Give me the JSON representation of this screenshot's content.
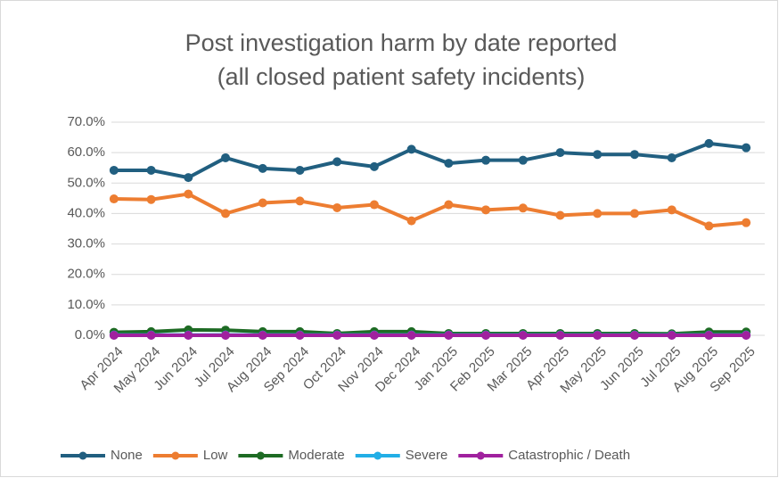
{
  "chart_data": {
    "type": "line",
    "title": "Post investigation harm by date reported",
    "subtitle": "(all closed patient safety incidents)",
    "categories": [
      "Apr 2024",
      "May 2024",
      "Jun 2024",
      "Jul 2024",
      "Aug 2024",
      "Sep 2024",
      "Oct 2024",
      "Nov 2024",
      "Dec 2024",
      "Jan 2025",
      "Feb 2025",
      "Mar 2025",
      "Apr 2025",
      "May 2025",
      "Jun 2025",
      "Jul 2025",
      "Aug 2025",
      "Sep 2025"
    ],
    "series": [
      {
        "name": "None",
        "color": "#215f80",
        "values": [
          54.2,
          54.2,
          51.8,
          58.3,
          54.8,
          54.2,
          57.0,
          55.4,
          61.1,
          56.5,
          57.5,
          57.5,
          60.0,
          59.4,
          59.4,
          58.3,
          63.0,
          61.6
        ]
      },
      {
        "name": "Low",
        "color": "#ed7d31",
        "values": [
          44.8,
          44.6,
          46.4,
          40.0,
          43.5,
          44.1,
          41.9,
          42.9,
          37.6,
          42.9,
          41.2,
          41.8,
          39.4,
          40.0,
          40.0,
          41.2,
          35.9,
          37.0
        ]
      },
      {
        "name": "Moderate",
        "color": "#1e6b24",
        "values": [
          1.0,
          1.2,
          1.8,
          1.7,
          1.2,
          1.2,
          0.6,
          1.2,
          1.2,
          0.6,
          0.6,
          0.6,
          0.6,
          0.6,
          0.6,
          0.5,
          1.1,
          1.1
        ]
      },
      {
        "name": "Severe",
        "color": "#22aee6",
        "values": [
          0.1,
          0.1,
          0.1,
          0.1,
          0.1,
          0.1,
          0.1,
          0.1,
          0.1,
          0.1,
          0.1,
          0.1,
          0.1,
          0.1,
          0.1,
          0.1,
          0.1,
          0.1
        ]
      },
      {
        "name": "Catastrophic / Death",
        "color": "#a0219e",
        "values": [
          0,
          0,
          0,
          0,
          0,
          0,
          0,
          0,
          0,
          0,
          0,
          0,
          0,
          0,
          0,
          0,
          0,
          0
        ]
      }
    ],
    "ylim": [
      0,
      70
    ],
    "yticks": [
      {
        "value": 0,
        "label": "0.0%"
      },
      {
        "value": 10,
        "label": "10.0%"
      },
      {
        "value": 20,
        "label": "20.0%"
      },
      {
        "value": 30,
        "label": "30.0%"
      },
      {
        "value": 40,
        "label": "40.0%"
      },
      {
        "value": 50,
        "label": "50.0%"
      },
      {
        "value": 60,
        "label": "60.0%"
      },
      {
        "value": 70,
        "label": "70.0%"
      }
    ],
    "grid": true,
    "legend": "bottom"
  }
}
